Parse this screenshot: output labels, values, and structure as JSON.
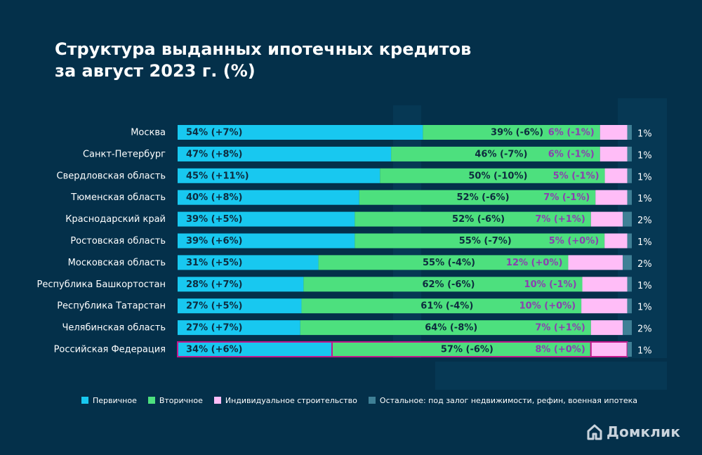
{
  "title_line1": "Структура выданных ипотечных кредитов",
  "title_line2": "за август 2023 г. (%)",
  "colors": {
    "background": "#04304a",
    "primary": "#18c8f0",
    "secondary": "#4de07e",
    "individual": "#ffbdf7",
    "other": "#3f8096",
    "dark_label": "#0d2b3e",
    "pink_label": "#8a3fb0",
    "highlight": "#c2188c"
  },
  "chart_data": {
    "type": "bar",
    "orientation": "horizontal",
    "stacked": true,
    "normalized": true,
    "title": "Структура выданных ипотечных кредитов за август 2023 г. (%)",
    "xlim": [
      0,
      100
    ],
    "categories": [
      "Москва",
      "Санкт-Петербург",
      "Свердловская область",
      "Тюменская область",
      "Краснодарский край",
      "Ростовская область",
      "Московская область",
      "Республика Башкортостан",
      "Республика Татарстан",
      "Челябинская область",
      "Российская Федерация"
    ],
    "highlighted_category": "Российская Федерация",
    "series": [
      {
        "name": "Первичное",
        "color": "#18c8f0",
        "values": [
          54,
          47,
          45,
          40,
          39,
          39,
          31,
          28,
          27,
          27,
          34
        ],
        "labels": [
          "54% (+7%)",
          "47% (+8%)",
          "45% (+11%)",
          "40% (+8%)",
          "39% (+5%)",
          "39% (+6%)",
          "31% (+5%)",
          "28% (+7%)",
          "27% (+5%)",
          "27% (+7%)",
          "34% (+6%)"
        ]
      },
      {
        "name": "Вторичное",
        "color": "#4de07e",
        "values": [
          39,
          46,
          50,
          52,
          52,
          55,
          55,
          62,
          61,
          64,
          57
        ],
        "labels": [
          "39% (-6%)",
          "46% (-7%)",
          "50% (-10%)",
          "52% (-6%)",
          "52% (-6%)",
          "55% (-7%)",
          "55% (-4%)",
          "62% (-6%)",
          "61% (-4%)",
          "64% (-8%)",
          "57% (-6%)"
        ]
      },
      {
        "name": "Индивидуальное строительство",
        "color": "#ffbdf7",
        "values": [
          6,
          6,
          5,
          7,
          7,
          5,
          12,
          10,
          10,
          7,
          8
        ],
        "labels": [
          "6% (-1%)",
          "6% (-1%)",
          "5% (-1%)",
          "7% (-1%)",
          "7% (+1%)",
          "5% (+0%)",
          "12% (+0%)",
          "10% (-1%)",
          "10% (+0%)",
          "7% (+1%)",
          "8% (+0%)"
        ]
      },
      {
        "name": "Остальное: под залог недвижимости, рефин, военная ипотека",
        "color": "#3f8096",
        "values": [
          1,
          1,
          1,
          1,
          2,
          1,
          2,
          1,
          1,
          2,
          1
        ],
        "labels": [
          "1%",
          "1%",
          "1%",
          "1%",
          "2%",
          "1%",
          "2%",
          "1%",
          "1%",
          "2%",
          "1%"
        ]
      }
    ]
  },
  "legend": [
    {
      "label": "Первичное",
      "color": "#18c8f0"
    },
    {
      "label": "Вторичное",
      "color": "#4de07e"
    },
    {
      "label": "Индивидуальное строительство",
      "color": "#ffbdf7"
    },
    {
      "label": "Остальное: под залог недвижимости, рефин, военная ипотека",
      "color": "#3f8096"
    }
  ],
  "brand": {
    "name": "Домклик",
    "icon": "house-icon"
  }
}
